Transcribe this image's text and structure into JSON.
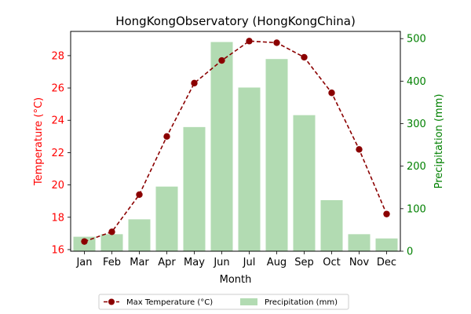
{
  "chart_data": {
    "type": "bar",
    "title": "HongKongObservatory (HongKongChina)",
    "xlabel": "Month",
    "categories": [
      "Jan",
      "Feb",
      "Mar",
      "Apr",
      "May",
      "Jun",
      "Jul",
      "Aug",
      "Sep",
      "Oct",
      "Nov",
      "Dec"
    ],
    "series": [
      {
        "name": "Max Temperature (°C)",
        "type": "line",
        "axis": "left",
        "color": "#8b0000",
        "values": [
          16.5,
          17.1,
          19.4,
          23.0,
          26.3,
          27.7,
          28.9,
          28.8,
          27.9,
          25.7,
          22.2,
          18.2
        ]
      },
      {
        "name": "Precipitation (mm)",
        "type": "bar",
        "axis": "right",
        "color": "#b2dbb2",
        "values": [
          34,
          40,
          75,
          152,
          292,
          492,
          385,
          452,
          320,
          120,
          40,
          30
        ]
      }
    ],
    "y_left": {
      "label": "Temperature (°C)",
      "color": "#ff0000",
      "ticks": [
        16,
        18,
        20,
        22,
        24,
        26,
        28
      ],
      "ylim": [
        15.9,
        29.5
      ]
    },
    "y_right": {
      "label": "Precipitation (mm)",
      "color": "#008000",
      "ticks": [
        0,
        100,
        200,
        300,
        400,
        500
      ],
      "ylim": [
        0,
        517
      ]
    },
    "legend": {
      "placement": "bottom-center",
      "items": [
        "Max Temperature (°C)",
        "Precipitation (mm)"
      ]
    },
    "grid": false
  }
}
